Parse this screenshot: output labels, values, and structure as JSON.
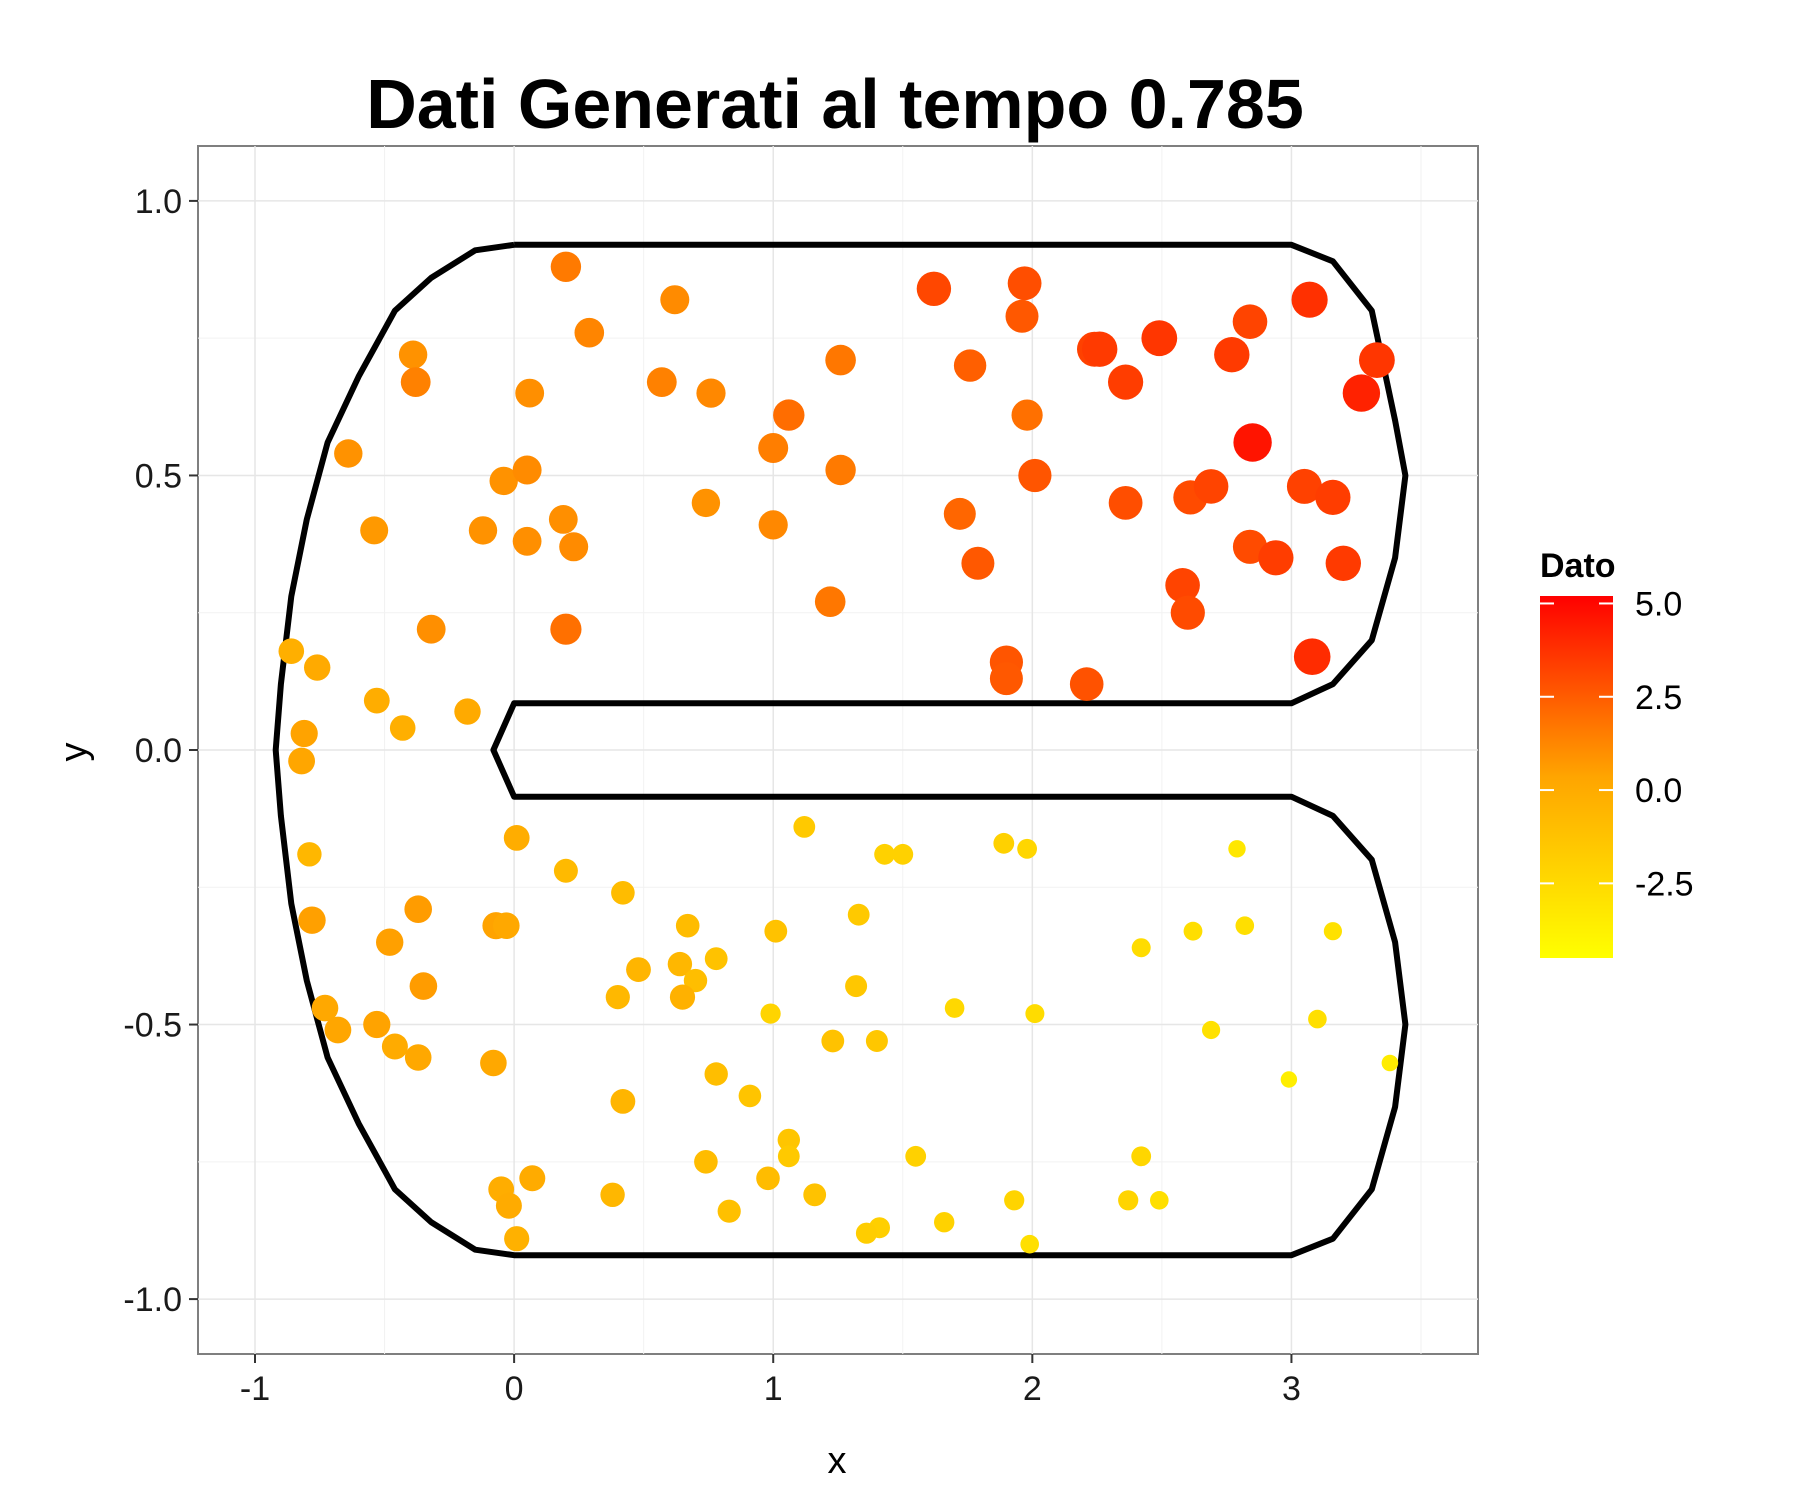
{
  "chart_data": {
    "type": "scatter",
    "title": "Dati Generati al tempo 0.785",
    "xlabel": "x",
    "ylabel": "y",
    "xlim": [
      -1.22,
      3.72
    ],
    "ylim": [
      -1.1,
      1.1
    ],
    "x_ticks": [
      -1,
      0,
      1,
      2,
      3
    ],
    "y_ticks": [
      -1.0,
      -0.5,
      0.0,
      0.5,
      1.0
    ],
    "x_tick_labels": [
      "-1",
      "0",
      "1",
      "2",
      "3"
    ],
    "y_tick_labels": [
      "-1.0",
      "-0.5",
      "0.0",
      "0.5",
      "1.0"
    ],
    "grid": true,
    "legend": {
      "title": "Dato",
      "position": "right",
      "colors": [
        "#FFFF00",
        "#FFA500",
        "#FF0000"
      ],
      "range": [
        -4.5,
        5.2
      ],
      "breaks": [
        5.0,
        2.5,
        0.0,
        -2.5
      ],
      "labels": [
        "5.0",
        "2.5",
        "0.0",
        "-2.5"
      ]
    },
    "boundary": [
      [
        0,
        0.92
      ],
      [
        3,
        0.92
      ],
      [
        3.16,
        0.89
      ],
      [
        3.31,
        0.8
      ],
      [
        3.4,
        0.6
      ],
      [
        3.44,
        0.5
      ],
      [
        3.4,
        0.35
      ],
      [
        3.31,
        0.2
      ],
      [
        3.16,
        0.12
      ],
      [
        3,
        0.085
      ],
      [
        0,
        0.085
      ],
      [
        -0.08,
        0
      ],
      [
        0,
        -0.085
      ],
      [
        3,
        -0.085
      ],
      [
        3.16,
        -0.12
      ],
      [
        3.31,
        -0.2
      ],
      [
        3.4,
        -0.35
      ],
      [
        3.44,
        -0.5
      ],
      [
        3.4,
        -0.65
      ],
      [
        3.31,
        -0.8
      ],
      [
        3.16,
        -0.89
      ],
      [
        3,
        -0.92
      ],
      [
        0,
        -0.92
      ],
      [
        -0.15,
        -0.91
      ],
      [
        -0.32,
        -0.86
      ],
      [
        -0.46,
        -0.8
      ],
      [
        -0.6,
        -0.68
      ],
      [
        -0.72,
        -0.56
      ],
      [
        -0.8,
        -0.42
      ],
      [
        -0.86,
        -0.28
      ],
      [
        -0.9,
        -0.12
      ],
      [
        -0.92,
        0
      ],
      [
        -0.9,
        0.12
      ],
      [
        -0.86,
        0.28
      ],
      [
        -0.8,
        0.42
      ],
      [
        -0.72,
        0.56
      ],
      [
        -0.6,
        0.68
      ],
      [
        -0.46,
        0.8
      ],
      [
        -0.32,
        0.86
      ],
      [
        -0.15,
        0.91
      ],
      [
        0,
        0.92
      ]
    ],
    "points": [
      {
        "x": 0.2,
        "y": 0.88,
        "v": 1.6
      },
      {
        "x": 0.29,
        "y": 0.76,
        "v": 1.3
      },
      {
        "x": 0.62,
        "y": 0.82,
        "v": 1.1
      },
      {
        "x": 0.57,
        "y": 0.67,
        "v": 1.4
      },
      {
        "x": 0.76,
        "y": 0.65,
        "v": 1.2
      },
      {
        "x": 1.06,
        "y": 0.61,
        "v": 2.0
      },
      {
        "x": 1.26,
        "y": 0.71,
        "v": 1.7
      },
      {
        "x": 1.62,
        "y": 0.84,
        "v": 3.1
      },
      {
        "x": 1.97,
        "y": 0.85,
        "v": 2.9
      },
      {
        "x": 1.96,
        "y": 0.79,
        "v": 2.6
      },
      {
        "x": 1.76,
        "y": 0.7,
        "v": 2.4
      },
      {
        "x": 2.24,
        "y": 0.73,
        "v": 3.3
      },
      {
        "x": 2.26,
        "y": 0.73,
        "v": 3.5
      },
      {
        "x": 2.36,
        "y": 0.67,
        "v": 3.4
      },
      {
        "x": 2.49,
        "y": 0.75,
        "v": 3.6
      },
      {
        "x": 2.77,
        "y": 0.72,
        "v": 3.5
      },
      {
        "x": 2.84,
        "y": 0.78,
        "v": 3.2
      },
      {
        "x": 3.07,
        "y": 0.82,
        "v": 3.8
      },
      {
        "x": 3.33,
        "y": 0.71,
        "v": 3.6
      },
      {
        "x": 3.27,
        "y": 0.65,
        "v": 4.2
      },
      {
        "x": 2.85,
        "y": 0.56,
        "v": 4.6
      },
      {
        "x": 1.98,
        "y": 0.61,
        "v": 1.9
      },
      {
        "x": 2.01,
        "y": 0.5,
        "v": 2.7
      },
      {
        "x": 1.26,
        "y": 0.51,
        "v": 1.6
      },
      {
        "x": 1.0,
        "y": 0.55,
        "v": 1.5
      },
      {
        "x": 0.06,
        "y": 0.65,
        "v": 1.0
      },
      {
        "x": -0.39,
        "y": 0.72,
        "v": 0.9
      },
      {
        "x": -0.38,
        "y": 0.67,
        "v": 1.4
      },
      {
        "x": -0.64,
        "y": 0.54,
        "v": 0.9
      },
      {
        "x": -0.54,
        "y": 0.4,
        "v": 0.7
      },
      {
        "x": -0.12,
        "y": 0.4,
        "v": 0.9
      },
      {
        "x": -0.04,
        "y": 0.49,
        "v": 0.9
      },
      {
        "x": 0.05,
        "y": 0.51,
        "v": 1.1
      },
      {
        "x": 0.05,
        "y": 0.38,
        "v": 1.0
      },
      {
        "x": 0.19,
        "y": 0.42,
        "v": 1.0
      },
      {
        "x": 0.23,
        "y": 0.37,
        "v": 1.1
      },
      {
        "x": 0.74,
        "y": 0.45,
        "v": 0.9
      },
      {
        "x": 1.0,
        "y": 0.41,
        "v": 1.2
      },
      {
        "x": 1.72,
        "y": 0.43,
        "v": 2.2
      },
      {
        "x": 1.79,
        "y": 0.34,
        "v": 2.6
      },
      {
        "x": 2.36,
        "y": 0.45,
        "v": 2.9
      },
      {
        "x": 2.61,
        "y": 0.46,
        "v": 3.0
      },
      {
        "x": 2.69,
        "y": 0.48,
        "v": 3.2
      },
      {
        "x": 2.84,
        "y": 0.37,
        "v": 3.0
      },
      {
        "x": 2.94,
        "y": 0.35,
        "v": 3.4
      },
      {
        "x": 3.05,
        "y": 0.48,
        "v": 3.3
      },
      {
        "x": 3.16,
        "y": 0.46,
        "v": 3.4
      },
      {
        "x": 3.2,
        "y": 0.34,
        "v": 3.5
      },
      {
        "x": 2.58,
        "y": 0.3,
        "v": 3.2
      },
      {
        "x": 2.6,
        "y": 0.25,
        "v": 3.0
      },
      {
        "x": 3.08,
        "y": 0.17,
        "v": 3.9
      },
      {
        "x": 1.22,
        "y": 0.27,
        "v": 1.7
      },
      {
        "x": 0.2,
        "y": 0.22,
        "v": 1.9
      },
      {
        "x": -0.32,
        "y": 0.22,
        "v": 1.0
      },
      {
        "x": 1.9,
        "y": 0.16,
        "v": 2.7
      },
      {
        "x": 1.9,
        "y": 0.13,
        "v": 2.6
      },
      {
        "x": 2.21,
        "y": 0.12,
        "v": 2.8
      },
      {
        "x": -0.86,
        "y": 0.18,
        "v": -0.2
      },
      {
        "x": -0.76,
        "y": 0.15,
        "v": 0.1
      },
      {
        "x": -0.53,
        "y": 0.09,
        "v": -0.1
      },
      {
        "x": -0.43,
        "y": 0.04,
        "v": -0.2
      },
      {
        "x": -0.18,
        "y": 0.07,
        "v": 0.1
      },
      {
        "x": -0.81,
        "y": 0.03,
        "v": 0.4
      },
      {
        "x": -0.82,
        "y": -0.02,
        "v": 0.3
      },
      {
        "x": -0.79,
        "y": -0.19,
        "v": -0.6
      },
      {
        "x": -0.78,
        "y": -0.31,
        "v": 0.5
      },
      {
        "x": -0.48,
        "y": -0.35,
        "v": 0.5
      },
      {
        "x": -0.37,
        "y": -0.29,
        "v": 0.6
      },
      {
        "x": -0.35,
        "y": -0.43,
        "v": 0.6
      },
      {
        "x": -0.73,
        "y": -0.47,
        "v": 0.2
      },
      {
        "x": -0.68,
        "y": -0.51,
        "v": 0.3
      },
      {
        "x": -0.53,
        "y": -0.5,
        "v": 0.4
      },
      {
        "x": -0.46,
        "y": -0.54,
        "v": 0.0
      },
      {
        "x": -0.37,
        "y": -0.56,
        "v": 0.2
      },
      {
        "x": -0.07,
        "y": -0.32,
        "v": 0.4
      },
      {
        "x": -0.03,
        "y": -0.32,
        "v": 0.2
      },
      {
        "x": 0.01,
        "y": -0.16,
        "v": -0.1
      },
      {
        "x": 0.2,
        "y": -0.22,
        "v": -0.8
      },
      {
        "x": -0.08,
        "y": -0.57,
        "v": 0.2
      },
      {
        "x": 0.42,
        "y": -0.26,
        "v": -0.9
      },
      {
        "x": 0.4,
        "y": -0.45,
        "v": -0.7
      },
      {
        "x": 0.48,
        "y": -0.4,
        "v": -0.5
      },
      {
        "x": 0.67,
        "y": -0.32,
        "v": -0.9
      },
      {
        "x": 0.64,
        "y": -0.39,
        "v": -0.6
      },
      {
        "x": 0.7,
        "y": -0.42,
        "v": -1.0
      },
      {
        "x": 0.78,
        "y": -0.38,
        "v": -1.2
      },
      {
        "x": 0.65,
        "y": -0.45,
        "v": -0.3
      },
      {
        "x": 1.01,
        "y": -0.33,
        "v": -1.2
      },
      {
        "x": 1.12,
        "y": -0.14,
        "v": -1.6
      },
      {
        "x": 0.99,
        "y": -0.48,
        "v": -2.2
      },
      {
        "x": 1.33,
        "y": -0.3,
        "v": -1.6
      },
      {
        "x": 1.32,
        "y": -0.43,
        "v": -1.5
      },
      {
        "x": 1.23,
        "y": -0.53,
        "v": -1.2
      },
      {
        "x": 1.4,
        "y": -0.53,
        "v": -1.5
      },
      {
        "x": 1.43,
        "y": -0.19,
        "v": -2.0
      },
      {
        "x": 1.5,
        "y": -0.19,
        "v": -2.0
      },
      {
        "x": 1.89,
        "y": -0.17,
        "v": -2.0
      },
      {
        "x": 1.98,
        "y": -0.18,
        "v": -2.3
      },
      {
        "x": 1.7,
        "y": -0.47,
        "v": -2.4
      },
      {
        "x": 2.01,
        "y": -0.48,
        "v": -2.6
      },
      {
        "x": 2.42,
        "y": -0.36,
        "v": -2.6
      },
      {
        "x": 2.62,
        "y": -0.33,
        "v": -2.7
      },
      {
        "x": 2.82,
        "y": -0.32,
        "v": -2.8
      },
      {
        "x": 2.79,
        "y": -0.18,
        "v": -3.2
      },
      {
        "x": 3.16,
        "y": -0.33,
        "v": -2.9
      },
      {
        "x": 2.69,
        "y": -0.51,
        "v": -2.9
      },
      {
        "x": 3.1,
        "y": -0.49,
        "v": -2.8
      },
      {
        "x": 2.99,
        "y": -0.6,
        "v": -3.6
      },
      {
        "x": 3.38,
        "y": -0.57,
        "v": -3.5
      },
      {
        "x": 0.78,
        "y": -0.59,
        "v": -1.0
      },
      {
        "x": 0.91,
        "y": -0.63,
        "v": -1.3
      },
      {
        "x": 0.42,
        "y": -0.64,
        "v": -0.5
      },
      {
        "x": 1.06,
        "y": -0.71,
        "v": -1.4
      },
      {
        "x": 1.06,
        "y": -0.74,
        "v": -1.6
      },
      {
        "x": 0.74,
        "y": -0.75,
        "v": -0.9
      },
      {
        "x": 0.98,
        "y": -0.78,
        "v": -0.9
      },
      {
        "x": 1.16,
        "y": -0.81,
        "v": -1.2
      },
      {
        "x": 0.38,
        "y": -0.81,
        "v": -0.6
      },
      {
        "x": 0.83,
        "y": -0.84,
        "v": -1.1
      },
      {
        "x": 1.55,
        "y": -0.74,
        "v": -2.0
      },
      {
        "x": 1.66,
        "y": -0.86,
        "v": -2.1
      },
      {
        "x": 1.41,
        "y": -0.87,
        "v": -1.9
      },
      {
        "x": 1.36,
        "y": -0.88,
        "v": -1.8
      },
      {
        "x": 1.93,
        "y": -0.82,
        "v": -2.2
      },
      {
        "x": 1.99,
        "y": -0.9,
        "v": -2.8
      },
      {
        "x": 2.42,
        "y": -0.74,
        "v": -2.3
      },
      {
        "x": 2.37,
        "y": -0.82,
        "v": -2.2
      },
      {
        "x": 2.49,
        "y": -0.82,
        "v": -2.8
      },
      {
        "x": -0.05,
        "y": -0.8,
        "v": -0.1
      },
      {
        "x": -0.02,
        "y": -0.83,
        "v": 0.0
      },
      {
        "x": 0.07,
        "y": -0.78,
        "v": 0.0
      },
      {
        "x": 0.01,
        "y": -0.89,
        "v": -0.3
      }
    ]
  }
}
